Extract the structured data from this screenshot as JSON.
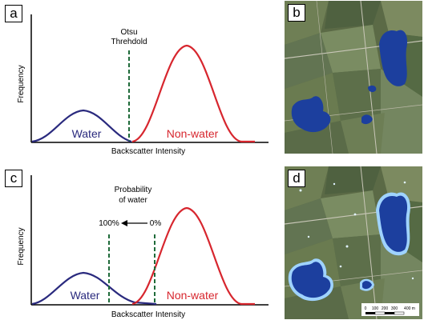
{
  "panels": {
    "a": {
      "label": "a",
      "threshold_line1": "Otsu",
      "threshold_line2": "Threhdold",
      "ylabel": "Frequency",
      "xlabel": "Backscatter Intensity",
      "water_label": "Water",
      "nonwater_label": "Non-water"
    },
    "b": {
      "label": "b"
    },
    "c": {
      "label": "c",
      "prob_line1": "Probability",
      "prob_line2": "of water",
      "pct_left": "100%",
      "pct_right": "0%",
      "ylabel": "Frequency",
      "xlabel": "Backscatter Intensity",
      "water_label": "Water",
      "nonwater_label": "Non-water"
    },
    "d": {
      "label": "d",
      "scale_ticks": [
        "0",
        "100",
        "200",
        "300",
        "400 m"
      ]
    }
  },
  "colors": {
    "water": "#2a2a7e",
    "nonwater": "#d7262e",
    "threshold": "#1f6b3a",
    "map_water": "#1c3f9e",
    "map_water_edge": "#9fd3ff"
  }
}
